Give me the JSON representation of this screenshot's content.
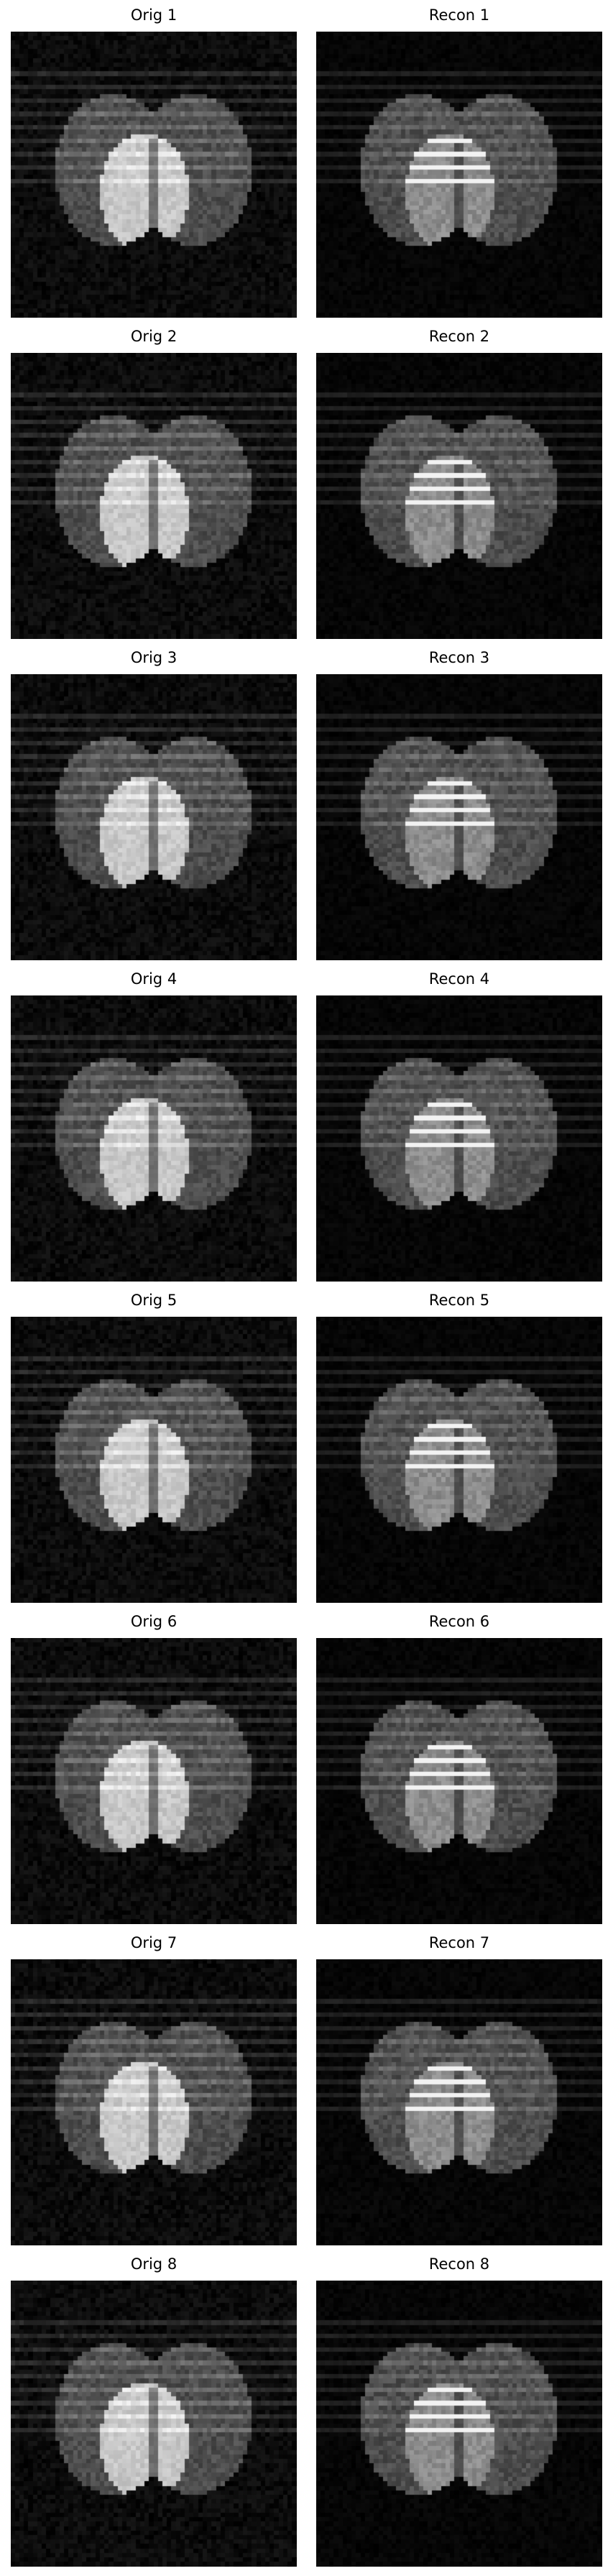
{
  "figure": {
    "rows": [
      {
        "left": {
          "title": "Orig 1",
          "kind": "orig"
        },
        "right": {
          "title": "Recon 1",
          "kind": "recon"
        }
      },
      {
        "left": {
          "title": "Orig 2",
          "kind": "orig"
        },
        "right": {
          "title": "Recon 2",
          "kind": "recon"
        }
      },
      {
        "left": {
          "title": "Orig 3",
          "kind": "orig"
        },
        "right": {
          "title": "Recon 3",
          "kind": "recon"
        }
      },
      {
        "left": {
          "title": "Orig 4",
          "kind": "orig"
        },
        "right": {
          "title": "Recon 4",
          "kind": "recon"
        }
      },
      {
        "left": {
          "title": "Orig 5",
          "kind": "orig"
        },
        "right": {
          "title": "Recon 5",
          "kind": "recon"
        }
      },
      {
        "left": {
          "title": "Orig 6",
          "kind": "orig"
        },
        "right": {
          "title": "Recon 6",
          "kind": "recon"
        }
      },
      {
        "left": {
          "title": "Orig 7",
          "kind": "orig"
        },
        "right": {
          "title": "Recon 7",
          "kind": "recon"
        }
      },
      {
        "left": {
          "title": "Orig 8",
          "kind": "orig"
        },
        "right": {
          "title": "Recon 8",
          "kind": "recon"
        }
      }
    ]
  },
  "colors": {
    "background": "#ffffff",
    "title_text": "#000000",
    "image_background": "#000000"
  },
  "colormap": "gray"
}
